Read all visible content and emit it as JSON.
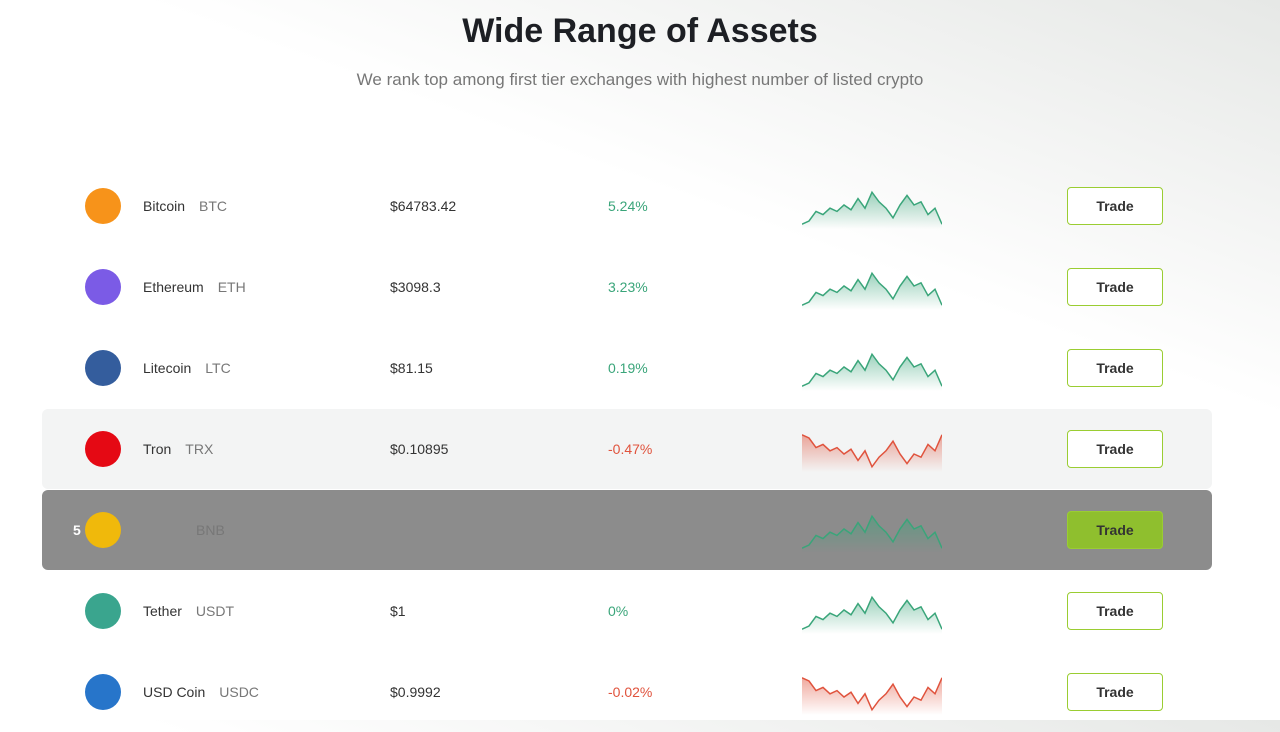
{
  "header": {
    "title": "Wide Range of Assets",
    "subtitle": "We rank top among first tier exchanges with highest number of listed crypto"
  },
  "rows": [
    {
      "name": "Bitcoin",
      "symbol": "BTC",
      "price": "$64783.42",
      "change": "5.24%",
      "color": "#3aa57a",
      "action": "Trade"
    },
    {
      "name": "Ethereum",
      "symbol": "ETH",
      "price": "$3098.3",
      "change": "3.23%",
      "color": "#3aa57a",
      "action": "Trade"
    },
    {
      "name": "Litecoin",
      "symbol": "LTC",
      "price": "$81.15",
      "change": "0.19%",
      "color": "#3aa57a",
      "action": "Trade"
    },
    {
      "name": "Tron",
      "symbol": "TRX",
      "price": "$0.10895",
      "change": "-0.47%",
      "color": "#e0533d",
      "action": "Trade"
    },
    {
      "rank": "5",
      "symbol": "BNB",
      "color": "#3aa57a",
      "action": "Trade"
    },
    {
      "name": "Tether",
      "symbol": "USDT",
      "price": "$1",
      "change": "0%",
      "color": "#3aa57a",
      "action": "Trade"
    },
    {
      "name": "USD Coin",
      "symbol": "USDC",
      "price": "$0.9992",
      "change": "-0.02%",
      "color": "#e0533d",
      "action": "Trade"
    }
  ]
}
